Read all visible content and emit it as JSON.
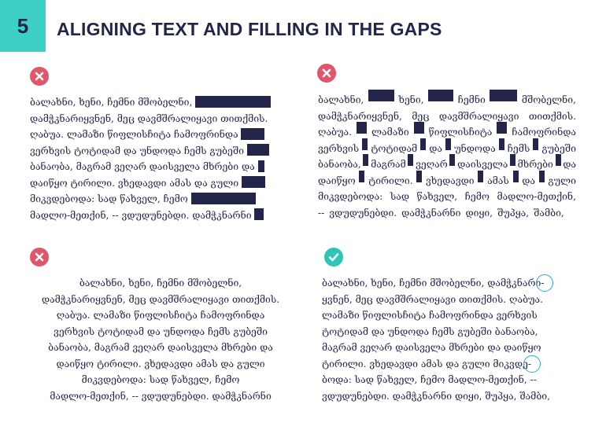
{
  "header": {
    "number": "5",
    "title": "ALIGNING TEXT AND FILLING IN THE GAPS"
  },
  "colors": {
    "accent": "#3ecfc6",
    "wrong": "#e0566a",
    "right": "#2ec4b6",
    "text": "#23264a",
    "ring": "#2aa8d8"
  },
  "panels": {
    "ragged": {
      "icon": "x-circle-icon",
      "lines": [
        "ბალახნი, ხენი, ჩემნი მშობელნი,",
        "დამჭკნარიყვნენ, მეც დავმშრალიყავი თითქმის.",
        "ღაბუა. ლამაზი წიფლისჩიტა ჩამოფრინდა",
        "ვერხვის ტოტიდამ და უნდოდა ჩემს გუბეში",
        "ბანაობა, მაგრამ ვეღარ დაისველა მხრები და",
        "დაიწყო ტირილი. ვხედავდი ამას და გული",
        "მიკვდებოდა: სად წახველ, ჩემო",
        "მადლო-მეთქინ, -- ვდუდუნებდი. დამჭკნარნი"
      ]
    },
    "justified": {
      "icon": "x-circle-icon",
      "lines": [
        [
          "ბალახნი,",
          "■",
          "ხენი,",
          "■",
          "ჩემნი",
          "■",
          "მშობელნი,"
        ],
        [
          "დამჭკნარიყვნენ,",
          "მეც",
          "დავმშრალიყავი",
          "თითქმის."
        ],
        [
          "ღაბუა.",
          "■",
          "ლამაზი",
          "■",
          "წიფლისჩიტა",
          "■",
          "ჩამოფრინდა"
        ],
        [
          "ვერხვის",
          "■",
          "ტოტიდამ",
          "■",
          "და",
          "■",
          "უნდოდა",
          "■",
          "ჩემს",
          "■",
          "გუბეში"
        ],
        [
          "ბანაობა,",
          "■",
          "მაგრამ",
          "■",
          "ვეღარ",
          "■",
          "დაისველა",
          "■",
          "მხრები",
          "■",
          "და"
        ],
        [
          "დაიწყო",
          "■",
          "ტირილი.",
          "■",
          "ვხედავდი",
          "■",
          "ამას",
          "■",
          "და",
          "■",
          "გული"
        ],
        [
          "მიკვდებოდა:",
          "სად",
          "წახველ,",
          "ჩემო",
          "მადლო-მეთქინ,"
        ],
        [
          "--",
          "ვდუდუნებდი.",
          "დამჭკნარნი",
          "დიყი,",
          "შუპყა,",
          "შამბი,"
        ]
      ]
    },
    "centered": {
      "icon": "x-circle-icon",
      "lines": [
        "ბალახნი, ხენი, ჩემნი მშობელნი,",
        "დამჭკნარიყვნენ, მეც დავმშრალიყავი თითქმის.",
        "ღაბუა. ლამაზი წიფლისჩიტა ჩამოფრინდა",
        "ვერხვის ტოტიდამ და უნდოდა ჩემს გუბეში",
        "ბანაობა, მაგრამ ვეღარ დაისველა მხრები და",
        "დაიწყო ტირილი. ვხედავდი ამას და გული",
        "მიკვდებოდა: სად წახველ, ჩემო",
        "მადლო-მეთქინ, -- ვდუდუნებდი. დამჭკნარნი"
      ]
    },
    "hyphenated": {
      "icon": "check-circle-icon",
      "lines": [
        "ბალახნი, ხენი, ჩემნი მშობელნი, დამჭკნარი-",
        "ყვნენ, მეც დავმშრალიყავი თითქმის. ღაბუა.",
        "ლამაზი წიფლისჩიტა ჩამოფრინდა ვერხვის",
        "ტოტიდამ და უნდოდა ჩემს გუბეში ბანაობა,",
        "მაგრამ ვეღარ დაისველა მხრები და დაიწყო",
        "ტირილი. ვხედავდი ამას და გული მიკვდე-",
        "ბოდა: სად წახველ, ჩემო მადლო-მეთქინ, --",
        "ვდუდუნებდი. დამჭკნარნი დიყი, შუპყა, შამბი,"
      ]
    }
  }
}
